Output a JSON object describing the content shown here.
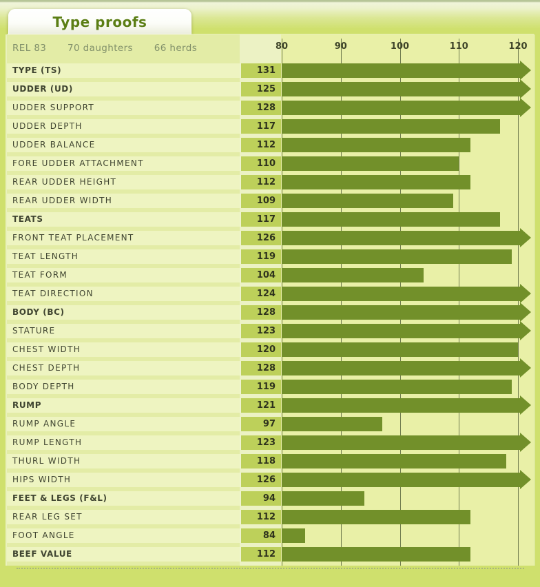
{
  "tab": {
    "label": "Type proofs"
  },
  "header": {
    "rel": "REL 83",
    "daughters": "70 daughters",
    "herds": "66 herds"
  },
  "colors": {
    "bar": "#72902a",
    "value_cell": "#bdd05a",
    "row_strip": "#eef4c1",
    "chart_background": "#e9f0a7",
    "page_background": "#cfe06d",
    "gridline": "#6f7b4e",
    "tab_text": "#5b7e15"
  },
  "chart_data": {
    "type": "bar",
    "orientation": "horizontal",
    "title": "Type proofs",
    "xlabel": "",
    "ylabel": "",
    "axis_ticks": [
      80,
      90,
      100,
      110,
      120
    ],
    "xlim": [
      80,
      120
    ],
    "grid": true,
    "overflow_marker": "arrow-right-for-values-over-120",
    "rows": [
      {
        "label": "TYPE (TS)",
        "value": 131,
        "bold": true
      },
      {
        "label": "UDDER (UD)",
        "value": 125,
        "bold": true
      },
      {
        "label": "UDDER SUPPORT",
        "value": 128,
        "bold": false
      },
      {
        "label": "UDDER DEPTH",
        "value": 117,
        "bold": false
      },
      {
        "label": "UDDER BALANCE",
        "value": 112,
        "bold": false
      },
      {
        "label": "FORE UDDER ATTACHMENT",
        "value": 110,
        "bold": false
      },
      {
        "label": "REAR UDDER HEIGHT",
        "value": 112,
        "bold": false
      },
      {
        "label": "REAR UDDER WIDTH",
        "value": 109,
        "bold": false
      },
      {
        "label": "TEATS",
        "value": 117,
        "bold": true
      },
      {
        "label": "FRONT TEAT PLACEMENT",
        "value": 126,
        "bold": false
      },
      {
        "label": "TEAT LENGTH",
        "value": 119,
        "bold": false
      },
      {
        "label": "TEAT FORM",
        "value": 104,
        "bold": false
      },
      {
        "label": "TEAT DIRECTION",
        "value": 124,
        "bold": false
      },
      {
        "label": "BODY (BC)",
        "value": 128,
        "bold": true
      },
      {
        "label": "STATURE",
        "value": 123,
        "bold": false
      },
      {
        "label": "CHEST WIDTH",
        "value": 120,
        "bold": false
      },
      {
        "label": "CHEST DEPTH",
        "value": 128,
        "bold": false
      },
      {
        "label": "BODY DEPTH",
        "value": 119,
        "bold": false
      },
      {
        "label": "RUMP",
        "value": 121,
        "bold": true
      },
      {
        "label": "RUMP ANGLE",
        "value": 97,
        "bold": false
      },
      {
        "label": "RUMP LENGTH",
        "value": 123,
        "bold": false
      },
      {
        "label": "THURL WIDTH",
        "value": 118,
        "bold": false
      },
      {
        "label": "HIPS WIDTH",
        "value": 126,
        "bold": false
      },
      {
        "label": "FEET & LEGS (F&L)",
        "value": 94,
        "bold": true
      },
      {
        "label": "REAR LEG SET",
        "value": 112,
        "bold": false
      },
      {
        "label": "FOOT ANGLE",
        "value": 84,
        "bold": false
      },
      {
        "label": "BEEF VALUE",
        "value": 112,
        "bold": true
      }
    ]
  }
}
